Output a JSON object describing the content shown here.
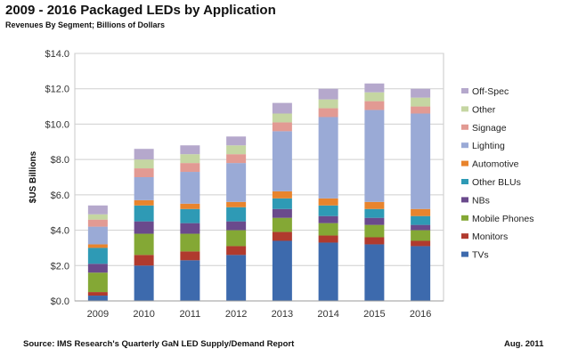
{
  "chart_data": {
    "type": "bar",
    "stacked": true,
    "title": "2009 - 2016 Packaged LEDs by Application",
    "subtitle": "Revenues By Segment; Billions of Dollars",
    "ylabel": "$US Billions",
    "xlabel": "",
    "ylim": [
      0,
      14
    ],
    "ytick_values": [
      0,
      2,
      4,
      6,
      8,
      10,
      12,
      14
    ],
    "ytick_labels": [
      "$0.0",
      "$2.0",
      "$4.0",
      "$6.0",
      "$8.0",
      "$10.0",
      "$12.0",
      "$14.0"
    ],
    "categories": [
      "2009",
      "2010",
      "2011",
      "2012",
      "2013",
      "2014",
      "2015",
      "2016"
    ],
    "grid": true,
    "legend_position": "right",
    "series": [
      {
        "name": "TVs",
        "color": "#3d6aad",
        "values": [
          0.3,
          2.0,
          2.3,
          2.6,
          3.4,
          3.3,
          3.2,
          3.1
        ]
      },
      {
        "name": "Monitors",
        "color": "#b03a2e",
        "values": [
          0.2,
          0.6,
          0.5,
          0.5,
          0.5,
          0.4,
          0.4,
          0.3
        ]
      },
      {
        "name": "Mobile Phones",
        "color": "#84a835",
        "values": [
          1.1,
          1.2,
          1.0,
          0.9,
          0.8,
          0.7,
          0.7,
          0.6
        ]
      },
      {
        "name": "NBs",
        "color": "#6a4a8c",
        "values": [
          0.5,
          0.7,
          0.6,
          0.5,
          0.5,
          0.4,
          0.4,
          0.3
        ]
      },
      {
        "name": "Other BLUs",
        "color": "#2e9ab5",
        "values": [
          0.9,
          0.9,
          0.8,
          0.8,
          0.6,
          0.6,
          0.5,
          0.5
        ]
      },
      {
        "name": "Automotive",
        "color": "#e8842d",
        "values": [
          0.2,
          0.3,
          0.3,
          0.3,
          0.4,
          0.4,
          0.4,
          0.4
        ]
      },
      {
        "name": "Lighting",
        "color": "#9aaad6",
        "values": [
          1.0,
          1.3,
          1.8,
          2.2,
          3.4,
          4.6,
          5.2,
          5.4
        ]
      },
      {
        "name": "Signage",
        "color": "#e29a93",
        "values": [
          0.4,
          0.5,
          0.5,
          0.5,
          0.5,
          0.5,
          0.5,
          0.4
        ]
      },
      {
        "name": "Other",
        "color": "#c5d6a2",
        "values": [
          0.3,
          0.5,
          0.5,
          0.5,
          0.5,
          0.5,
          0.5,
          0.5
        ]
      },
      {
        "name": "Off-Spec",
        "color": "#b5a8cc",
        "values": [
          0.5,
          0.6,
          0.5,
          0.5,
          0.6,
          0.6,
          0.5,
          0.5
        ]
      }
    ]
  },
  "footer": {
    "source": "Source: IMS Research's Quarterly GaN LED Supply/Demand Report",
    "date": "Aug. 2011"
  }
}
